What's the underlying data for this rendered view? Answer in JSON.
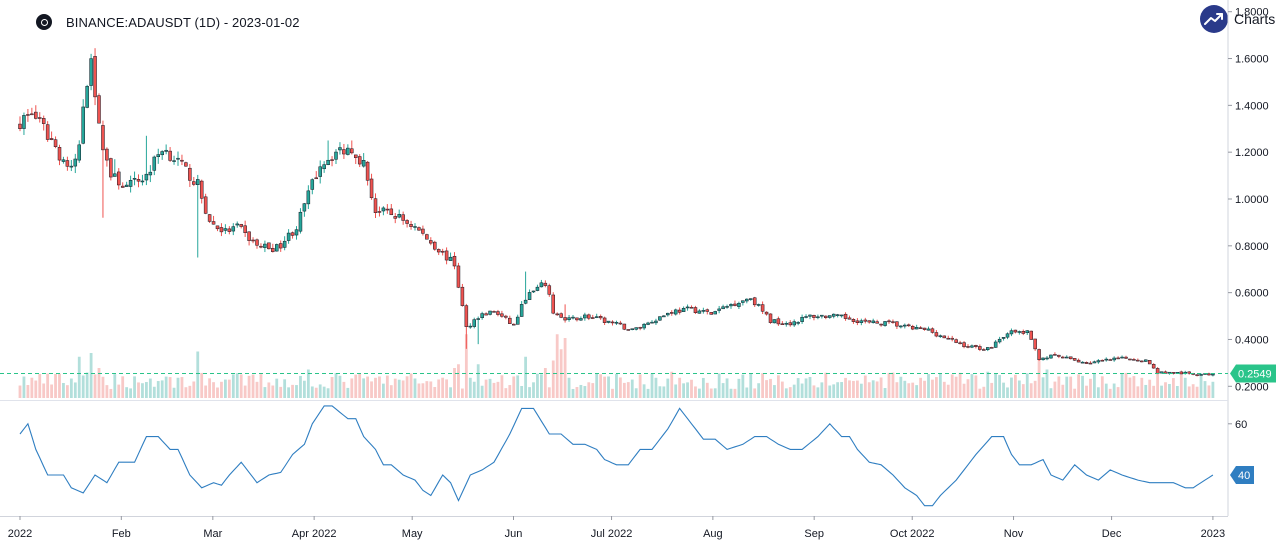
{
  "header": {
    "title": "BINANCE:ADAUSDT (1D) - 2023-01-02",
    "brand": "Charts p"
  },
  "colors": {
    "up": "#26a69a",
    "down": "#ef5350",
    "wick": "#131722",
    "vol_up": "#b2dfdb",
    "vol_down": "#f8c9c7",
    "indicator": "#2f7ec1",
    "last_price": "#2ac48a",
    "indicator_tag": "#2f7ec1",
    "axis_text": "#131722"
  },
  "chart_data": {
    "type": "candlestick",
    "symbol": "BINANCE:ADAUSDT",
    "interval": "1D",
    "date": "2023-01-02",
    "x_tick_labels": [
      "2022",
      "Feb",
      "Mar",
      "Apr 2022",
      "May",
      "Jun",
      "Jul 2022",
      "Aug",
      "Sep",
      "Oct 2022",
      "Nov",
      "Dec",
      "2023"
    ],
    "price_axis": {
      "ylim": [
        0.15,
        1.85
      ],
      "ticks": [
        0.2,
        0.4,
        0.6,
        0.8,
        1.0,
        1.2,
        1.4,
        1.6,
        1.8
      ],
      "tick_labels": [
        "0.2000",
        "0.4000",
        "0.6000",
        "0.8000",
        "1.0000",
        "1.2000",
        "1.4000",
        "1.6000",
        "1.8000"
      ]
    },
    "last_price": 0.2549,
    "last_price_label": "0.2549",
    "close_anchors": [
      [
        0,
        1.33
      ],
      [
        3,
        1.37
      ],
      [
        8,
        1.25
      ],
      [
        10,
        1.19
      ],
      [
        13,
        1.12
      ],
      [
        15,
        1.22
      ],
      [
        16,
        1.4
      ],
      [
        18,
        1.62
      ],
      [
        20,
        1.3
      ],
      [
        23,
        1.1
      ],
      [
        27,
        1.05
      ],
      [
        32,
        1.1
      ],
      [
        36,
        1.22
      ],
      [
        40,
        1.16
      ],
      [
        45,
        1.06
      ],
      [
        48,
        0.9
      ],
      [
        52,
        0.86
      ],
      [
        55,
        0.88
      ],
      [
        60,
        0.8
      ],
      [
        65,
        0.79
      ],
      [
        70,
        0.88
      ],
      [
        73,
        1.02
      ],
      [
        76,
        1.15
      ],
      [
        80,
        1.2
      ],
      [
        84,
        1.22
      ],
      [
        87,
        1.15
      ],
      [
        90,
        0.95
      ],
      [
        95,
        0.93
      ],
      [
        100,
        0.88
      ],
      [
        105,
        0.8
      ],
      [
        110,
        0.72
      ],
      [
        113,
        0.45
      ],
      [
        116,
        0.5
      ],
      [
        120,
        0.52
      ],
      [
        125,
        0.46
      ],
      [
        128,
        0.58
      ],
      [
        133,
        0.64
      ],
      [
        135,
        0.52
      ],
      [
        138,
        0.48
      ],
      [
        143,
        0.5
      ],
      [
        150,
        0.47
      ],
      [
        155,
        0.44
      ],
      [
        160,
        0.48
      ],
      [
        165,
        0.52
      ],
      [
        170,
        0.53
      ],
      [
        175,
        0.51
      ],
      [
        180,
        0.55
      ],
      [
        185,
        0.58
      ],
      [
        190,
        0.48
      ],
      [
        195,
        0.47
      ],
      [
        200,
        0.5
      ],
      [
        205,
        0.5
      ],
      [
        210,
        0.49
      ],
      [
        215,
        0.47
      ],
      [
        220,
        0.47
      ],
      [
        225,
        0.45
      ],
      [
        230,
        0.44
      ],
      [
        235,
        0.4
      ],
      [
        240,
        0.37
      ],
      [
        245,
        0.36
      ],
      [
        250,
        0.43
      ],
      [
        255,
        0.43
      ],
      [
        258,
        0.32
      ],
      [
        262,
        0.33
      ],
      [
        270,
        0.3
      ],
      [
        280,
        0.32
      ],
      [
        285,
        0.31
      ],
      [
        288,
        0.26
      ],
      [
        295,
        0.255
      ],
      [
        300,
        0.25
      ],
      [
        302,
        0.2549
      ]
    ],
    "spikes": [
      [
        18,
        1.62,
        "h"
      ],
      [
        21,
        0.92,
        "l"
      ],
      [
        24,
        1.17,
        "h"
      ],
      [
        32,
        1.27,
        "h"
      ],
      [
        45,
        0.75,
        "l"
      ],
      [
        78,
        1.25,
        "h"
      ],
      [
        84,
        1.25,
        "h"
      ],
      [
        113,
        0.36,
        "l"
      ],
      [
        116,
        0.38,
        "l"
      ],
      [
        128,
        0.69,
        "h"
      ],
      [
        138,
        0.55,
        "h"
      ]
    ],
    "volume_spikes": [
      [
        15,
        0.55
      ],
      [
        18,
        0.6
      ],
      [
        20,
        0.4
      ],
      [
        45,
        0.62
      ],
      [
        73,
        0.38
      ],
      [
        110,
        0.4
      ],
      [
        111,
        0.45
      ],
      [
        113,
        0.85
      ],
      [
        116,
        0.45
      ],
      [
        128,
        0.55
      ],
      [
        133,
        0.4
      ],
      [
        135,
        0.5
      ],
      [
        136,
        0.85
      ],
      [
        137,
        0.65
      ],
      [
        138,
        0.8
      ],
      [
        165,
        0.35
      ],
      [
        245,
        0.35
      ],
      [
        258,
        0.55
      ],
      [
        260,
        0.38
      ]
    ],
    "indicator_axis": {
      "ticks": [
        60
      ],
      "tick_labels": [
        "60"
      ],
      "last_value": 40,
      "last_value_label": "40"
    },
    "indicator_anchors": [
      [
        0,
        56
      ],
      [
        2,
        60
      ],
      [
        4,
        50
      ],
      [
        7,
        40
      ],
      [
        11,
        40
      ],
      [
        13,
        35
      ],
      [
        16,
        33
      ],
      [
        19,
        40
      ],
      [
        22,
        37
      ],
      [
        25,
        45
      ],
      [
        29,
        45
      ],
      [
        32,
        55
      ],
      [
        35,
        55
      ],
      [
        38,
        50
      ],
      [
        40,
        50
      ],
      [
        43,
        40
      ],
      [
        46,
        35
      ],
      [
        49,
        37
      ],
      [
        51,
        36
      ],
      [
        53,
        40
      ],
      [
        56,
        45
      ],
      [
        60,
        37
      ],
      [
        63,
        40
      ],
      [
        66,
        41
      ],
      [
        69,
        48
      ],
      [
        72,
        52
      ],
      [
        74,
        60
      ],
      [
        77,
        67
      ],
      [
        79,
        67
      ],
      [
        83,
        62
      ],
      [
        85,
        62
      ],
      [
        87,
        55
      ],
      [
        90,
        50
      ],
      [
        92,
        44
      ],
      [
        94,
        44
      ],
      [
        97,
        40
      ],
      [
        100,
        38
      ],
      [
        102,
        34
      ],
      [
        104,
        32
      ],
      [
        107,
        40
      ],
      [
        109,
        37
      ],
      [
        111,
        30
      ],
      [
        114,
        40
      ],
      [
        117,
        42
      ],
      [
        120,
        45
      ],
      [
        124,
        56
      ],
      [
        127,
        66
      ],
      [
        130,
        66
      ],
      [
        134,
        56
      ],
      [
        137,
        56
      ],
      [
        140,
        52
      ],
      [
        143,
        52
      ],
      [
        146,
        50
      ],
      [
        148,
        46
      ],
      [
        151,
        44
      ],
      [
        154,
        44
      ],
      [
        157,
        50
      ],
      [
        160,
        50
      ],
      [
        164,
        58
      ],
      [
        167,
        66
      ],
      [
        170,
        60
      ],
      [
        173,
        54
      ],
      [
        176,
        54
      ],
      [
        179,
        50
      ],
      [
        183,
        52
      ],
      [
        186,
        55
      ],
      [
        189,
        55
      ],
      [
        192,
        52
      ],
      [
        195,
        50
      ],
      [
        198,
        50
      ],
      [
        202,
        55
      ],
      [
        205,
        60
      ],
      [
        208,
        55
      ],
      [
        210,
        55
      ],
      [
        212,
        50
      ],
      [
        215,
        45
      ],
      [
        218,
        44
      ],
      [
        221,
        40
      ],
      [
        224,
        35
      ],
      [
        227,
        32
      ],
      [
        229,
        28
      ],
      [
        231,
        28
      ],
      [
        233,
        32
      ],
      [
        235,
        35
      ],
      [
        237,
        38
      ],
      [
        239,
        42
      ],
      [
        242,
        48
      ],
      [
        246,
        55
      ],
      [
        249,
        55
      ],
      [
        251,
        48
      ],
      [
        253,
        44
      ],
      [
        256,
        44
      ],
      [
        259,
        46
      ],
      [
        261,
        40
      ],
      [
        264,
        38
      ],
      [
        267,
        44
      ],
      [
        270,
        40
      ],
      [
        273,
        38
      ],
      [
        276,
        42
      ],
      [
        279,
        40
      ],
      [
        283,
        38
      ],
      [
        286,
        37
      ],
      [
        289,
        37
      ],
      [
        292,
        37
      ],
      [
        295,
        35
      ],
      [
        297,
        35
      ],
      [
        299,
        37
      ],
      [
        302,
        40
      ]
    ]
  }
}
